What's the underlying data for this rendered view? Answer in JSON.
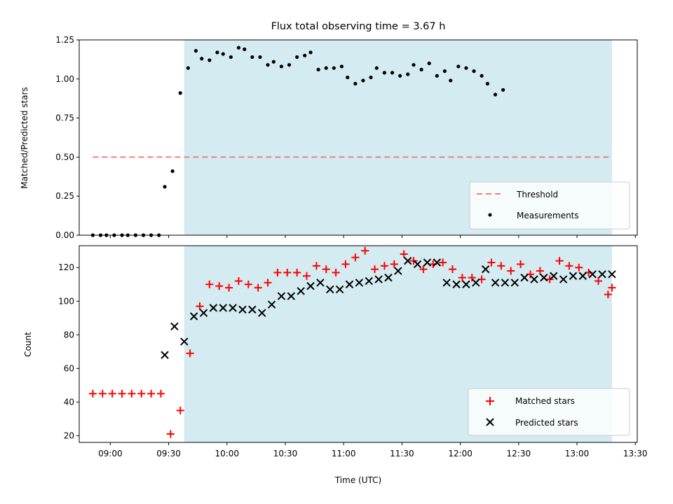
{
  "chart_data": {
    "type": "scatter",
    "title": "Flux total observing time = 3.67 h",
    "xlabel": "Time (UTC)",
    "x_range": [
      "08:44",
      "13:31"
    ],
    "x_ticks": [
      "09:00",
      "09:30",
      "10:00",
      "10:30",
      "11:00",
      "11:30",
      "12:00",
      "12:30",
      "13:00",
      "13:30"
    ],
    "observing_window": {
      "start": "09:38",
      "end": "13:18",
      "color": "#d3ebf1"
    },
    "top_panel": {
      "ylabel": "Matched/Predicted stars",
      "ylim": [
        0,
        1.25
      ],
      "yticks": [
        "0.00",
        "0.25",
        "0.50",
        "0.75",
        "1.00",
        "1.25"
      ],
      "legend_position": "lower-right",
      "threshold": {
        "name": "Threshold",
        "value": 0.5,
        "x_start": "08:51",
        "x_end": "13:18",
        "color": "#f08080",
        "style": "dashed"
      },
      "measurements": {
        "name": "Measurements",
        "color": "#000000",
        "x": [
          "08:51",
          "08:55",
          "08:58",
          "09:02",
          "09:06",
          "09:09",
          "09:13",
          "09:17",
          "09:21",
          "09:25",
          "09:28",
          "09:32",
          "09:36",
          "09:40",
          "09:44",
          "09:47",
          "09:51",
          "09:55",
          "09:58",
          "10:02",
          "10:06",
          "10:09",
          "10:13",
          "10:17",
          "10:21",
          "10:24",
          "10:28",
          "10:32",
          "10:36",
          "10:40",
          "10:43",
          "10:47",
          "10:51",
          "10:55",
          "10:59",
          "11:02",
          "11:06",
          "11:10",
          "11:14",
          "11:17",
          "11:21",
          "11:25",
          "11:29",
          "11:33",
          "11:36",
          "11:40",
          "11:44",
          "11:48",
          "11:52",
          "11:55",
          "11:59",
          "12:03",
          "12:07",
          "12:11",
          "12:14",
          "12:18",
          "12:22",
          "12:26",
          "12:30",
          "12:33",
          "12:37",
          "12:41",
          "12:45",
          "12:49",
          "12:52",
          "12:56",
          "13:00",
          "13:04",
          "13:08",
          "13:11",
          "13:15",
          "13:18"
        ],
        "y": [
          0.0,
          0.0,
          0.0,
          0.0,
          0.0,
          0.0,
          0.0,
          0.0,
          0.0,
          0.0,
          0.31,
          0.41,
          0.91,
          1.07,
          1.18,
          1.13,
          1.12,
          1.17,
          1.16,
          1.14,
          1.2,
          1.19,
          1.14,
          1.14,
          1.09,
          1.11,
          1.08,
          1.09,
          1.14,
          1.15,
          1.17,
          1.06,
          1.07,
          1.07,
          1.08,
          1.01,
          0.97,
          0.99,
          1.01,
          1.07,
          1.04,
          1.04,
          1.02,
          1.03,
          1.09,
          1.06,
          1.1,
          1.02,
          1.05,
          0.99,
          1.08,
          1.07,
          1.05,
          1.02,
          0.97,
          0.9,
          0.93,
          null,
          null,
          null,
          null,
          null,
          null,
          null,
          null,
          null,
          null,
          null,
          null,
          null,
          null,
          null
        ]
      }
    },
    "bottom_panel": {
      "ylabel": "Count",
      "ylim": [
        16,
        133
      ],
      "yticks": [
        "20",
        "40",
        "60",
        "80",
        "100",
        "120"
      ],
      "legend_position": "lower-right",
      "series": [
        {
          "name": "Matched stars",
          "marker": "plus",
          "color": "#ff0000",
          "x": [
            "08:51",
            "08:56",
            "09:01",
            "09:06",
            "09:11",
            "09:16",
            "09:21",
            "09:26",
            "09:31",
            "09:36",
            "09:41",
            "09:46",
            "09:51",
            "09:56",
            "10:01",
            "10:06",
            "10:11",
            "10:16",
            "10:21",
            "10:26",
            "10:31",
            "10:36",
            "10:41",
            "10:46",
            "10:51",
            "10:56",
            "11:01",
            "11:06",
            "11:11",
            "11:16",
            "11:21",
            "11:26",
            "11:31",
            "11:36",
            "11:41",
            "11:46",
            "11:51",
            "11:56",
            "12:01",
            "12:06",
            "12:11",
            "12:16",
            "12:21",
            "12:26",
            "12:31",
            "12:36",
            "12:41",
            "12:46",
            "12:51",
            "12:56",
            "13:01",
            "13:06",
            "13:11",
            "13:16",
            "13:18"
          ],
          "y": [
            45,
            45,
            45,
            45,
            45,
            45,
            45,
            45,
            21,
            35,
            69,
            97,
            110,
            109,
            108,
            112,
            110,
            108,
            111,
            117,
            117,
            117,
            115,
            121,
            119,
            117,
            122,
            126,
            130,
            119,
            121,
            122,
            128,
            124,
            119,
            122,
            123,
            119,
            114,
            114,
            113,
            123,
            121,
            118,
            122,
            116,
            118,
            113,
            124,
            121,
            120,
            117,
            112,
            104,
            108
          ]
        },
        {
          "name": "Predicted stars",
          "marker": "x",
          "color": "#000000",
          "x": [
            "09:28",
            "09:33",
            "09:38",
            "09:43",
            "09:48",
            "09:53",
            "09:58",
            "10:03",
            "10:08",
            "10:13",
            "10:18",
            "10:23",
            "10:28",
            "10:33",
            "10:38",
            "10:43",
            "10:48",
            "10:53",
            "10:58",
            "11:03",
            "11:08",
            "11:13",
            "11:18",
            "11:23",
            "11:28",
            "11:33",
            "11:38",
            "11:43",
            "11:48",
            "11:53",
            "11:58",
            "12:03",
            "12:08",
            "12:13",
            "12:18",
            "12:23",
            "12:28",
            "12:33",
            "12:38",
            "12:43",
            "12:48",
            "12:53",
            "12:58",
            "13:03",
            "13:08",
            "13:13",
            "13:18"
          ],
          "y": [
            68,
            85,
            76,
            91,
            93,
            96,
            96,
            96,
            95,
            95,
            93,
            98,
            103,
            103,
            106,
            109,
            111,
            107,
            107,
            110,
            111,
            112,
            113,
            114,
            118,
            124,
            122,
            123,
            123,
            111,
            110,
            110,
            111,
            119,
            111,
            111,
            111,
            114,
            113,
            114,
            115,
            113,
            115,
            115,
            116,
            116,
            116
          ]
        }
      ]
    }
  }
}
